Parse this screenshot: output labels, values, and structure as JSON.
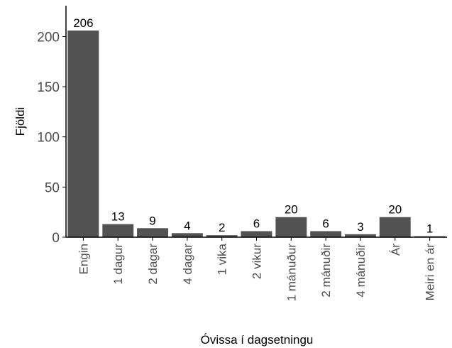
{
  "chart_data": {
    "type": "bar",
    "title": "",
    "xlabel": "Óvissa í dagsetningu",
    "ylabel": "Fjöldi",
    "categories": [
      "Engin",
      "1 dagur",
      "2 dagar",
      "4 dagar",
      "1 vika",
      "2 vikur",
      "1 mánuður",
      "2 mánuðir",
      "4 mánuðir",
      "Ár",
      "Meiri en ár"
    ],
    "values": [
      206,
      13,
      9,
      4,
      2,
      6,
      20,
      6,
      3,
      20,
      1
    ],
    "data_labels": [
      "206",
      "13",
      "9",
      "4",
      "2",
      "6",
      "20",
      "6",
      "3",
      "20",
      "1"
    ],
    "yticks": [
      0,
      50,
      100,
      150,
      200
    ],
    "ytick_labels": [
      "0",
      "50",
      "100",
      "150",
      "200"
    ],
    "ylim": [
      0,
      230
    ],
    "grid": false,
    "bar_color": "#525252"
  }
}
